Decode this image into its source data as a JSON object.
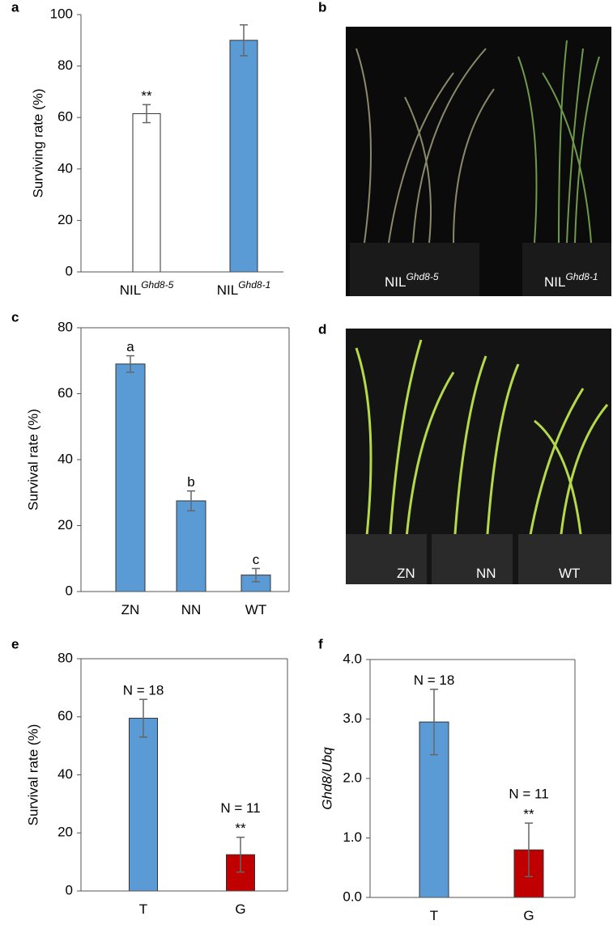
{
  "chart_data": [
    {
      "type": "bar",
      "panel_label": "a",
      "ylabel": "Surviving rate (%)",
      "frame": false,
      "categories": [
        "NIL",
        "NIL"
      ],
      "category_superscripts": [
        "Ghd8-5",
        "Ghd8-1"
      ],
      "values": [
        61.5,
        90
      ],
      "errors": [
        3.5,
        6
      ],
      "colors": [
        "#ffffff",
        "#5b9bd5"
      ],
      "bar_labels": [
        [
          "**"
        ],
        []
      ],
      "ylim": [
        0,
        100
      ],
      "yticks": [
        0,
        20,
        40,
        60,
        80,
        100
      ]
    },
    {
      "type": "bar",
      "panel_label": "c",
      "ylabel": "Survival rate (%)",
      "frame": true,
      "categories": [
        "ZN",
        "NN",
        "WT"
      ],
      "values": [
        69,
        27.5,
        5
      ],
      "errors": [
        2.5,
        3,
        2
      ],
      "colors": [
        "#5b9bd5",
        "#5b9bd5",
        "#5b9bd5"
      ],
      "bar_labels": [
        [
          "a"
        ],
        [
          "b"
        ],
        [
          "c"
        ]
      ],
      "ylim": [
        0,
        80
      ],
      "yticks": [
        0,
        20,
        40,
        60,
        80
      ]
    },
    {
      "type": "bar",
      "panel_label": "e",
      "ylabel": "Survival rate (%)",
      "frame": true,
      "categories": [
        "T",
        "G"
      ],
      "values": [
        59.5,
        12.5
      ],
      "errors": [
        6.5,
        6
      ],
      "colors": [
        "#5b9bd5",
        "#c00000"
      ],
      "bar_labels": [
        [
          "N = 18"
        ],
        [
          "N = 11",
          "**"
        ]
      ],
      "ylim": [
        0,
        80
      ],
      "yticks": [
        0,
        20,
        40,
        60,
        80
      ]
    },
    {
      "type": "bar",
      "panel_label": "f",
      "ylabel": "Ghd8/Ubq",
      "ylabel_italic": true,
      "frame": true,
      "categories": [
        "T",
        "G"
      ],
      "values": [
        2.95,
        0.8
      ],
      "errors": [
        0.55,
        0.45
      ],
      "colors": [
        "#5b9bd5",
        "#c00000"
      ],
      "bar_labels": [
        [
          "N = 18"
        ],
        [
          "N = 11",
          "**"
        ]
      ],
      "ylim": [
        0,
        4
      ],
      "yticks": [
        {
          "value": 0,
          "label": "0.0"
        },
        {
          "value": 1,
          "label": "1.0"
        },
        {
          "value": 2,
          "label": "2.0"
        },
        {
          "value": 3,
          "label": "3.0"
        },
        {
          "value": 4,
          "label": "4.0"
        }
      ]
    }
  ],
  "photos": [
    {
      "panel_label": "b",
      "labels": [
        {
          "text": "NIL",
          "sup": "Ghd8-5"
        },
        {
          "text": "NIL",
          "sup": "Ghd8-1"
        }
      ]
    },
    {
      "panel_label": "d",
      "labels": [
        {
          "text": "ZN"
        },
        {
          "text": "NN"
        },
        {
          "text": "WT"
        }
      ]
    }
  ]
}
